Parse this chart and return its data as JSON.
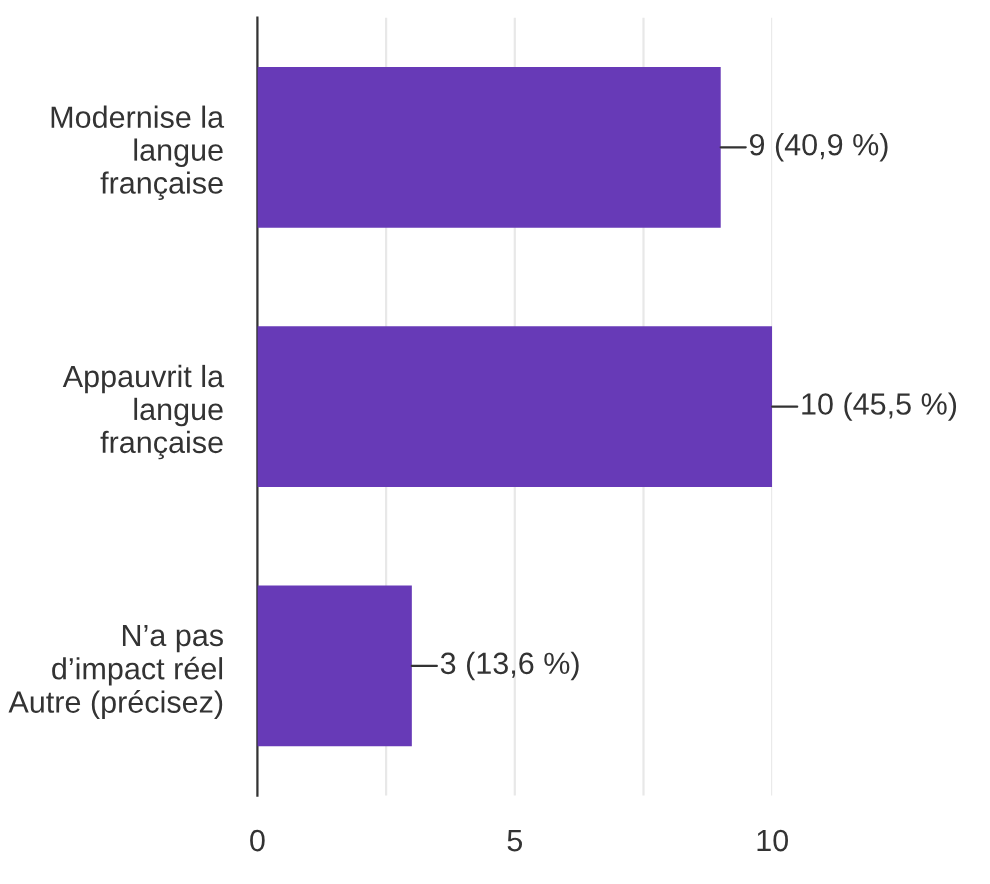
{
  "chart_data": {
    "type": "bar",
    "orientation": "horizontal",
    "categories": [
      "Modernise la\nlangue\nfrançaise",
      "Appauvrit la\nlangue\nfrançaise",
      "N’a pas\nd’impact réel\nAutre (précisez)"
    ],
    "values": [
      9,
      10,
      3
    ],
    "color": "#673ab7",
    "value_labels": [
      "9 (40,9 %)",
      "10 (45,5 %)",
      "3 (13,6 %)"
    ],
    "xlim": [
      0,
      10
    ],
    "xticks": [
      0,
      {
        "value": 2.5,
        "label": null
      },
      5,
      {
        "value": 7.5,
        "label": null
      },
      10
    ],
    "grid": "x"
  }
}
